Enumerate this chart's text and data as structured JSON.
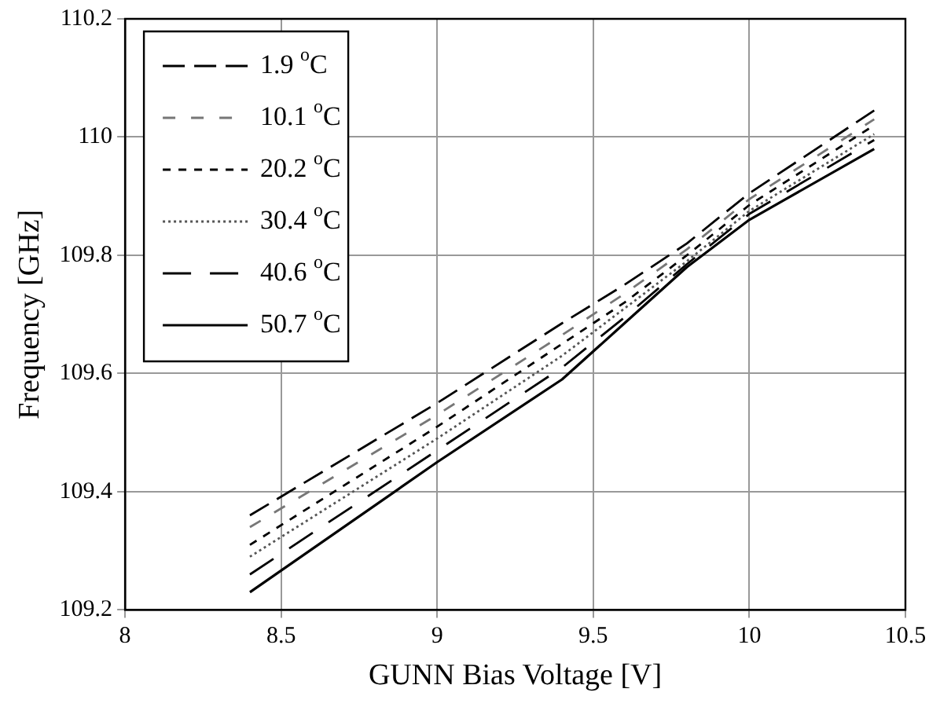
{
  "chart_data": {
    "type": "line",
    "xlabel": "GUNN Bias Voltage [V]",
    "ylabel": "Frequency [GHz]",
    "xlim": [
      8,
      10.5
    ],
    "xticks": [
      8,
      8.5,
      9,
      9.5,
      10,
      10.5
    ],
    "ylim": [
      109.2,
      110.2
    ],
    "yticks": [
      109.2,
      109.4,
      109.6,
      109.8,
      110,
      110.2
    ],
    "x": [
      8.4,
      9.0,
      9.4,
      9.6,
      9.8,
      10.0,
      10.4
    ],
    "series": [
      {
        "name": "1.9 $^{o}$C",
        "color": "#000000",
        "line_style": "dashed",
        "values": [
          109.36,
          109.55,
          109.685,
          109.75,
          109.82,
          109.905,
          110.045
        ]
      },
      {
        "name": "10.1 $^{o}$C",
        "color": "#777777",
        "line_style": "dashed",
        "values": [
          109.34,
          109.53,
          109.665,
          109.735,
          109.81,
          109.895,
          110.03
        ]
      },
      {
        "name": "20.2 $^{o}$C",
        "color": "#000000",
        "line_style": "dashed",
        "values": [
          109.31,
          109.51,
          109.65,
          109.72,
          109.8,
          109.885,
          110.02
        ]
      },
      {
        "name": "30.4 $^{o}$C",
        "color": "#555555",
        "line_style": "dotted",
        "values": [
          109.29,
          109.49,
          109.63,
          109.71,
          109.79,
          109.875,
          110.005
        ]
      },
      {
        "name": "40.6 $^{o}$C",
        "color": "#000000",
        "line_style": "dashed",
        "values": [
          109.26,
          109.47,
          109.61,
          109.695,
          109.785,
          109.87,
          109.995
        ]
      },
      {
        "name": "50.7 $^{o}$C",
        "color": "#000000",
        "line_style": "solid",
        "values": [
          109.23,
          109.45,
          109.59,
          109.685,
          109.78,
          109.86,
          109.98
        ]
      }
    ],
    "grid": true,
    "legend": "top left",
    "marker": "none"
  }
}
